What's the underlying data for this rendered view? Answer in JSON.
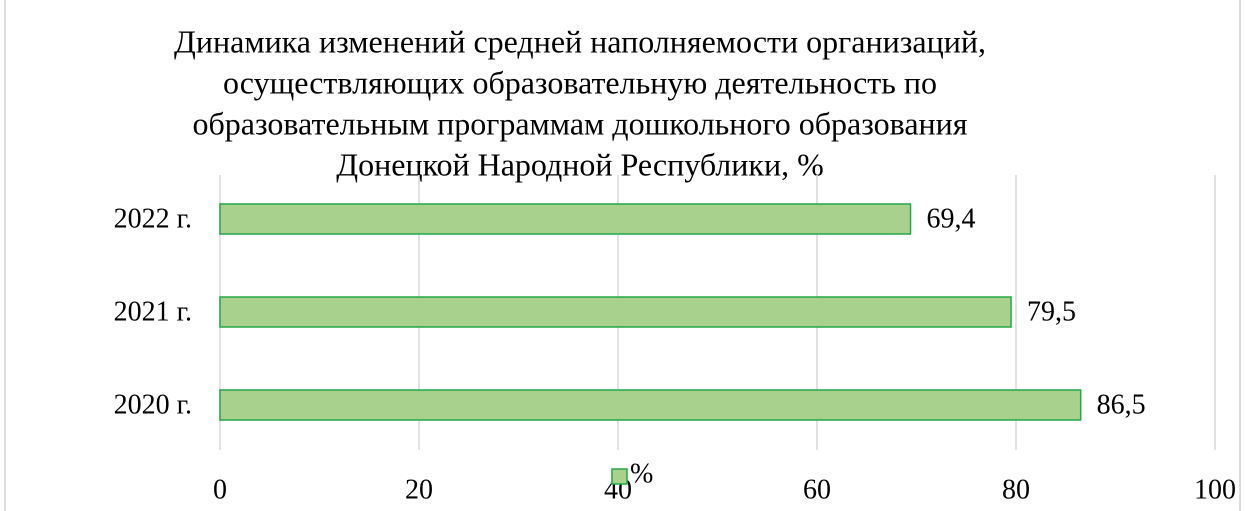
{
  "chart_data": {
    "type": "bar",
    "orientation": "horizontal",
    "title": [
      "Динамика изменений средней наполняемости организаций,",
      "осуществляющих образовательную деятельность по",
      "образовательным программам дошкольного образования",
      "Донецкой Народной Республики, %"
    ],
    "categories": [
      "2020 г.",
      "2021 г.",
      "2022 г."
    ],
    "series": [
      {
        "name": "%",
        "color": "#a9d18e",
        "edge_color": "#22a846",
        "values": [
          86.5,
          79.5,
          69.4
        ],
        "value_labels": [
          "86,5",
          "79,5",
          "69,4"
        ]
      }
    ],
    "xlim": [
      0,
      100
    ],
    "xticks": [
      0,
      20,
      40,
      60,
      80,
      100
    ],
    "grid": true,
    "legend": "bottom"
  }
}
